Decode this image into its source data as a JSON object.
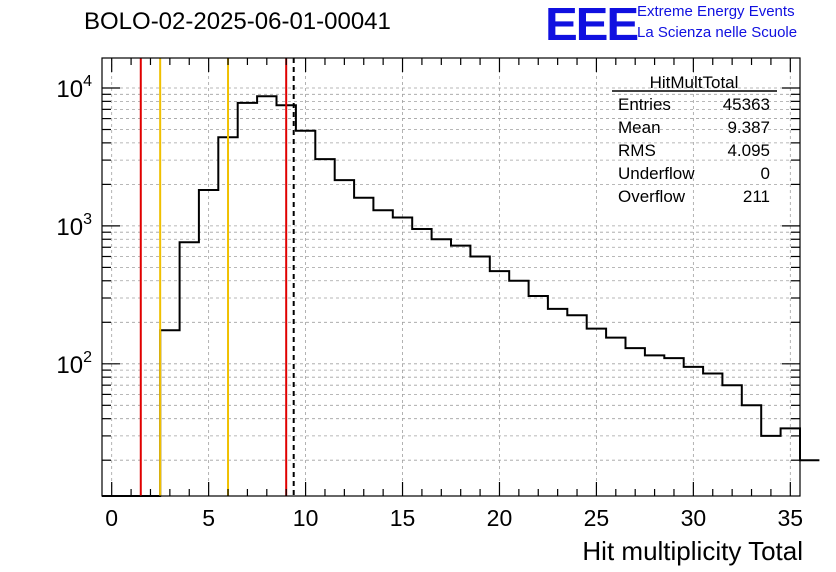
{
  "header": {
    "run_title": "BOLO-02-2025-06-01-00041",
    "logo_text": "EEE",
    "logo_line1": "Extreme Energy Events",
    "logo_line2": "La Scienza nelle Scuole"
  },
  "stats": {
    "name": "HitMultTotal",
    "rows": [
      {
        "label": "Entries",
        "value": "45363"
      },
      {
        "label": "Mean",
        "value": "9.387"
      },
      {
        "label": "RMS",
        "value": "4.095"
      },
      {
        "label": "Underflow",
        "value": "0"
      },
      {
        "label": "Overflow",
        "value": "211"
      }
    ]
  },
  "colors": {
    "red": "#e00000",
    "yellow": "#f0c000",
    "blue": "#1010e0"
  },
  "chart_data": {
    "type": "histogram",
    "title": "BOLO-02-2025-06-01-00041",
    "xlabel": "Hit multiplicity Total",
    "ylabel": "",
    "xlim": [
      -0.5,
      35.5
    ],
    "ylog": true,
    "ylim": [
      11,
      16500
    ],
    "grid": true,
    "bin_width": 1,
    "bin_start": -0.5,
    "values": [
      0,
      0,
      0,
      175,
      760,
      1820,
      4400,
      7800,
      8700,
      7500,
      4900,
      3050,
      2150,
      1600,
      1300,
      1150,
      950,
      800,
      720,
      600,
      470,
      400,
      310,
      250,
      225,
      180,
      155,
      130,
      115,
      110,
      95,
      85,
      70,
      50,
      30,
      34,
      20
    ],
    "x_ticks": [
      0,
      5,
      10,
      15,
      20,
      25,
      30,
      35
    ],
    "y_ticks": [
      {
        "value": 100,
        "base": "10",
        "exp": "2"
      },
      {
        "value": 1000,
        "base": "10",
        "exp": "3"
      },
      {
        "value": 10000,
        "base": "10",
        "exp": "4"
      }
    ],
    "vlines": [
      {
        "x": 1.5,
        "color": "red",
        "style": "solid"
      },
      {
        "x": 2.5,
        "color": "yellow",
        "style": "solid"
      },
      {
        "x": 6.0,
        "color": "yellow",
        "style": "solid"
      },
      {
        "x": 9.0,
        "color": "red",
        "style": "solid"
      },
      {
        "x": 9.387,
        "color": "black",
        "style": "dashed"
      }
    ]
  }
}
